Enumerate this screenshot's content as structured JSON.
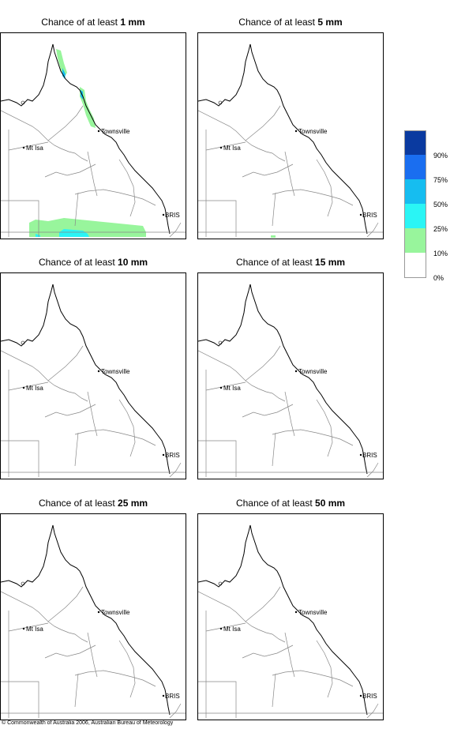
{
  "panels": [
    {
      "prefix": "Chance of at least ",
      "amount": "1 mm"
    },
    {
      "prefix": "Chance of at least ",
      "amount": "5 mm"
    },
    {
      "prefix": "Chance of at least ",
      "amount": "10 mm"
    },
    {
      "prefix": "Chance of at least ",
      "amount": "15 mm"
    },
    {
      "prefix": "Chance of at least ",
      "amount": "25 mm"
    },
    {
      "prefix": "Chance of at least ",
      "amount": "50 mm"
    }
  ],
  "places": {
    "townsville": "Townsville",
    "mt_isa": "Mt Isa",
    "brisbane": "BRIS"
  },
  "legend": {
    "labels": [
      "90%",
      "75%",
      "50%",
      "25%",
      "10%",
      "0%"
    ],
    "colors": [
      "#0a3aa0",
      "#1a6ef0",
      "#16bdf0",
      "#2af5f5",
      "#98f59c",
      "#ffffff"
    ]
  },
  "copyright": "© Commonwealth of Australia 2006, Australian Bureau of Meteorology"
}
